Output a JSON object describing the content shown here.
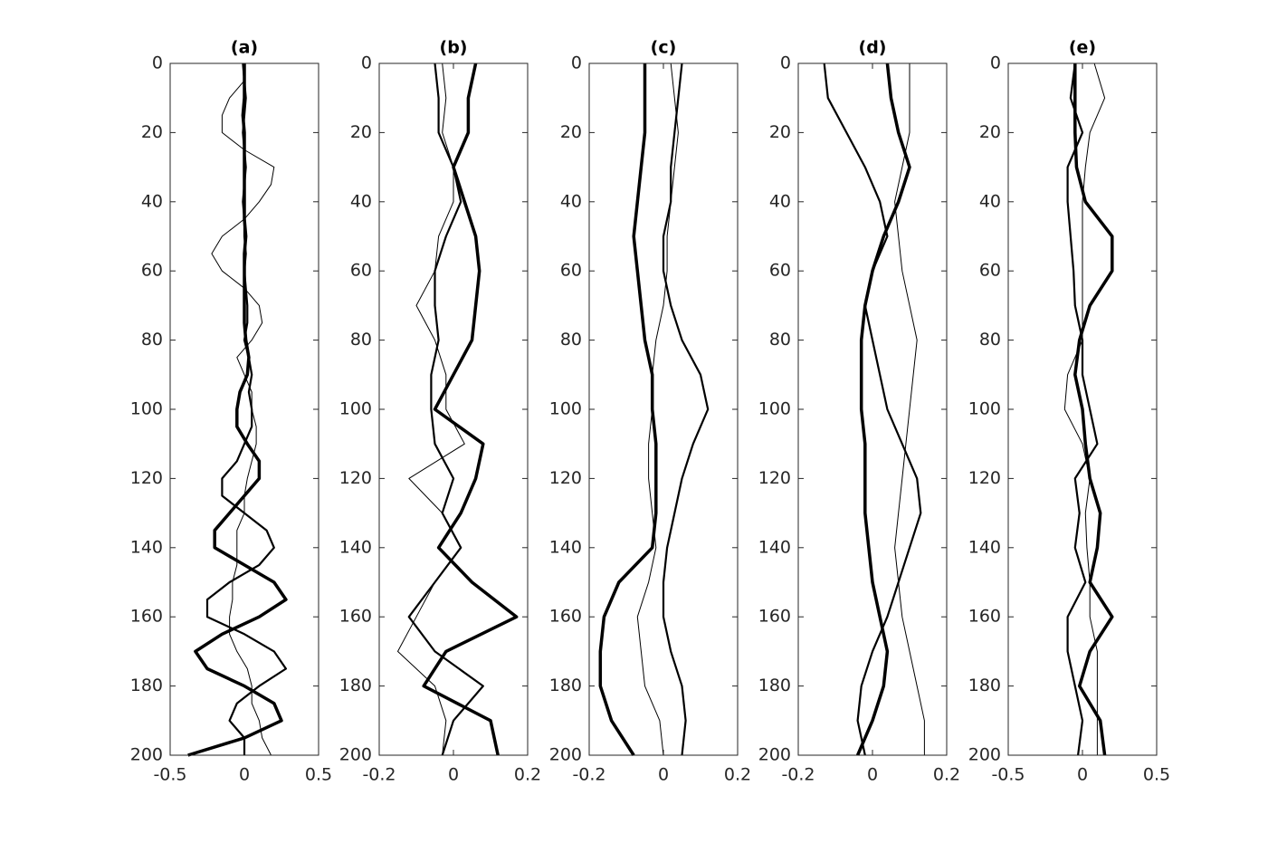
{
  "chart_data": [
    {
      "type": "line",
      "title": "(a)",
      "xlim": [
        -0.5,
        0.5
      ],
      "xticks": [
        -0.5,
        0,
        0.5
      ],
      "ylim": [
        0,
        200
      ],
      "y_inverted": true,
      "yticks": [
        0,
        20,
        40,
        60,
        80,
        100,
        120,
        140,
        160,
        180,
        200
      ],
      "y": [
        0,
        5,
        10,
        15,
        20,
        25,
        30,
        35,
        40,
        45,
        50,
        55,
        60,
        65,
        70,
        75,
        80,
        85,
        90,
        95,
        100,
        105,
        110,
        115,
        120,
        125,
        130,
        135,
        140,
        145,
        150,
        155,
        160,
        165,
        170,
        175,
        180,
        185,
        190,
        195,
        200
      ],
      "series": [
        {
          "color": "#000000",
          "width": 3.5,
          "values": [
            0,
            0,
            0,
            -0.01,
            0,
            0,
            0,
            0,
            0,
            0,
            0.01,
            0,
            0,
            0,
            0,
            0,
            0.01,
            0.03,
            0.02,
            -0.03,
            -0.05,
            -0.05,
            0.02,
            0.1,
            0.1,
            0,
            -0.1,
            -0.2,
            -0.2,
            0,
            0.2,
            0.28,
            0.1,
            -0.15,
            -0.33,
            -0.25,
            0,
            0.2,
            0.25,
            0,
            -0.38
          ]
        },
        {
          "color": "#000000",
          "width": 2.2,
          "values": [
            -0.01,
            0,
            0.01,
            0,
            -0.01,
            0,
            0.01,
            0,
            -0.01,
            0,
            0,
            0.01,
            0,
            0.01,
            0.02,
            0.02,
            0,
            0.03,
            0.05,
            0.03,
            0.05,
            0.05,
            0,
            -0.05,
            -0.15,
            -0.15,
            0,
            0.15,
            0.2,
            0.1,
            -0.1,
            -0.25,
            -0.25,
            0,
            0.2,
            0.28,
            0.1,
            -0.05,
            -0.1,
            0,
            0
          ]
        },
        {
          "color": "#000000",
          "width": 1,
          "values": [
            0,
            0,
            -0.1,
            -0.15,
            -0.15,
            0,
            0.2,
            0.18,
            0.1,
            0,
            -0.15,
            -0.22,
            -0.15,
            0,
            0.1,
            0.12,
            0.05,
            -0.05,
            0,
            0.05,
            0.05,
            0.08,
            0.08,
            0.05,
            0.02,
            0,
            0,
            -0.05,
            -0.05,
            -0.05,
            -0.08,
            -0.08,
            -0.1,
            -0.1,
            -0.05,
            0.02,
            0.05,
            0.05,
            0.1,
            0.12,
            0.18
          ]
        }
      ]
    },
    {
      "type": "line",
      "title": "(b)",
      "xlim": [
        -0.2,
        0.2
      ],
      "xticks": [
        -0.2,
        0,
        0.2
      ],
      "ylim": [
        0,
        200
      ],
      "y_inverted": true,
      "yticks": [
        0,
        20,
        40,
        60,
        80,
        100,
        120,
        140,
        160,
        180,
        200
      ],
      "y": [
        0,
        10,
        20,
        30,
        40,
        50,
        60,
        70,
        80,
        90,
        100,
        110,
        120,
        130,
        140,
        150,
        160,
        170,
        180,
        190,
        200
      ],
      "series": [
        {
          "color": "#000000",
          "width": 3.5,
          "values": [
            0.06,
            0.04,
            0.04,
            0,
            0.03,
            0.06,
            0.07,
            0.06,
            0.05,
            0,
            -0.05,
            0.08,
            0.06,
            0.02,
            -0.04,
            0.05,
            0.17,
            -0.02,
            -0.08,
            0.1,
            0.12
          ]
        },
        {
          "color": "#000000",
          "width": 2.2,
          "values": [
            -0.05,
            -0.04,
            -0.04,
            0,
            0.02,
            -0.02,
            -0.05,
            -0.05,
            -0.04,
            -0.06,
            -0.06,
            -0.05,
            0,
            -0.03,
            0.02,
            -0.05,
            -0.12,
            -0.05,
            0.08,
            0,
            -0.03
          ]
        },
        {
          "color": "#000000",
          "width": 1,
          "values": [
            -0.03,
            -0.02,
            -0.03,
            0,
            0,
            -0.04,
            -0.05,
            -0.1,
            -0.05,
            -0.02,
            -0.02,
            0.03,
            -0.12,
            -0.03,
            0.02,
            -0.05,
            -0.1,
            -0.15,
            -0.05,
            -0.02,
            -0.03
          ]
        }
      ]
    },
    {
      "type": "line",
      "title": "(c)",
      "xlim": [
        -0.2,
        0.2
      ],
      "xticks": [
        -0.2,
        0,
        0.2
      ],
      "ylim": [
        0,
        200
      ],
      "y_inverted": true,
      "yticks": [
        0,
        20,
        40,
        60,
        80,
        100,
        120,
        140,
        160,
        180,
        200
      ],
      "y": [
        0,
        10,
        20,
        30,
        40,
        50,
        60,
        70,
        80,
        90,
        100,
        110,
        120,
        130,
        140,
        150,
        160,
        170,
        180,
        190,
        200
      ],
      "series": [
        {
          "color": "#000000",
          "width": 3.5,
          "values": [
            -0.05,
            -0.05,
            -0.05,
            -0.06,
            -0.07,
            -0.08,
            -0.07,
            -0.06,
            -0.05,
            -0.03,
            -0.03,
            -0.02,
            -0.02,
            -0.02,
            -0.03,
            -0.12,
            -0.16,
            -0.17,
            -0.17,
            -0.14,
            -0.08
          ]
        },
        {
          "color": "#000000",
          "width": 2.2,
          "values": [
            0.05,
            0.04,
            0.03,
            0.02,
            0.02,
            0,
            0,
            0.02,
            0.05,
            0.1,
            0.12,
            0.08,
            0.05,
            0.03,
            0.01,
            0,
            0,
            0.02,
            0.05,
            0.06,
            0.05
          ]
        },
        {
          "color": "#000000",
          "width": 1,
          "values": [
            0.02,
            0.03,
            0.04,
            0.03,
            0.02,
            0.01,
            0.01,
            0,
            -0.02,
            -0.03,
            -0.03,
            -0.04,
            -0.04,
            -0.03,
            -0.02,
            -0.04,
            -0.07,
            -0.06,
            -0.05,
            -0.01,
            0
          ]
        }
      ]
    },
    {
      "type": "line",
      "title": "(d)",
      "xlim": [
        -0.2,
        0.2
      ],
      "xticks": [
        -0.2,
        0,
        0.2
      ],
      "ylim": [
        0,
        200
      ],
      "y_inverted": true,
      "yticks": [
        0,
        20,
        40,
        60,
        80,
        100,
        120,
        140,
        160,
        180,
        200
      ],
      "y": [
        0,
        10,
        20,
        30,
        40,
        50,
        60,
        70,
        80,
        90,
        100,
        110,
        120,
        130,
        140,
        150,
        160,
        170,
        180,
        190,
        200
      ],
      "series": [
        {
          "color": "#000000",
          "width": 3.5,
          "values": [
            0.04,
            0.05,
            0.07,
            0.1,
            0.07,
            0.03,
            0,
            -0.02,
            -0.03,
            -0.03,
            -0.03,
            -0.02,
            -0.02,
            -0.02,
            -0.01,
            0,
            0.02,
            0.04,
            0.03,
            0,
            -0.04
          ]
        },
        {
          "color": "#000000",
          "width": 2.2,
          "values": [
            -0.13,
            -0.12,
            -0.07,
            -0.02,
            0.02,
            0.04,
            0,
            -0.02,
            0,
            0.02,
            0.04,
            0.08,
            0.12,
            0.13,
            0.1,
            0.07,
            0.04,
            0,
            -0.03,
            -0.04,
            -0.02
          ]
        },
        {
          "color": "#000000",
          "width": 1,
          "values": [
            0.1,
            0.1,
            0.1,
            0.08,
            0.06,
            0.07,
            0.08,
            0.1,
            0.12,
            0.11,
            0.1,
            0.09,
            0.08,
            0.07,
            0.06,
            0.07,
            0.08,
            0.1,
            0.12,
            0.14,
            0.14
          ]
        }
      ]
    },
    {
      "type": "line",
      "title": "(e)",
      "xlim": [
        -0.5,
        0.5
      ],
      "xticks": [
        -0.5,
        0,
        0.5
      ],
      "ylim": [
        0,
        200
      ],
      "y_inverted": true,
      "yticks": [
        0,
        20,
        40,
        60,
        80,
        100,
        120,
        140,
        160,
        180,
        200
      ],
      "y": [
        0,
        10,
        20,
        30,
        40,
        50,
        60,
        70,
        80,
        90,
        100,
        110,
        120,
        130,
        140,
        150,
        160,
        170,
        180,
        190,
        200
      ],
      "series": [
        {
          "color": "#000000",
          "width": 3.5,
          "values": [
            -0.05,
            -0.05,
            -0.05,
            -0.04,
            0.02,
            0.2,
            0.2,
            0.05,
            -0.02,
            -0.05,
            0,
            0.02,
            0.05,
            0.12,
            0.1,
            0.05,
            0.2,
            0.05,
            -0.02,
            0.12,
            0.15
          ]
        },
        {
          "color": "#000000",
          "width": 2.2,
          "values": [
            -0.05,
            -0.08,
            0,
            -0.1,
            -0.1,
            -0.08,
            -0.06,
            -0.05,
            0,
            0,
            0.05,
            0.1,
            -0.05,
            -0.02,
            -0.05,
            0.02,
            -0.1,
            -0.1,
            -0.05,
            0,
            -0.03
          ]
        },
        {
          "color": "#000000",
          "width": 1,
          "values": [
            0.08,
            0.15,
            0.05,
            0.02,
            0,
            0,
            0,
            0,
            0,
            -0.1,
            -0.12,
            0,
            0.05,
            0.02,
            0.03,
            0.05,
            0.05,
            0.1,
            0.1,
            0.1,
            0.1
          ]
        }
      ]
    }
  ]
}
